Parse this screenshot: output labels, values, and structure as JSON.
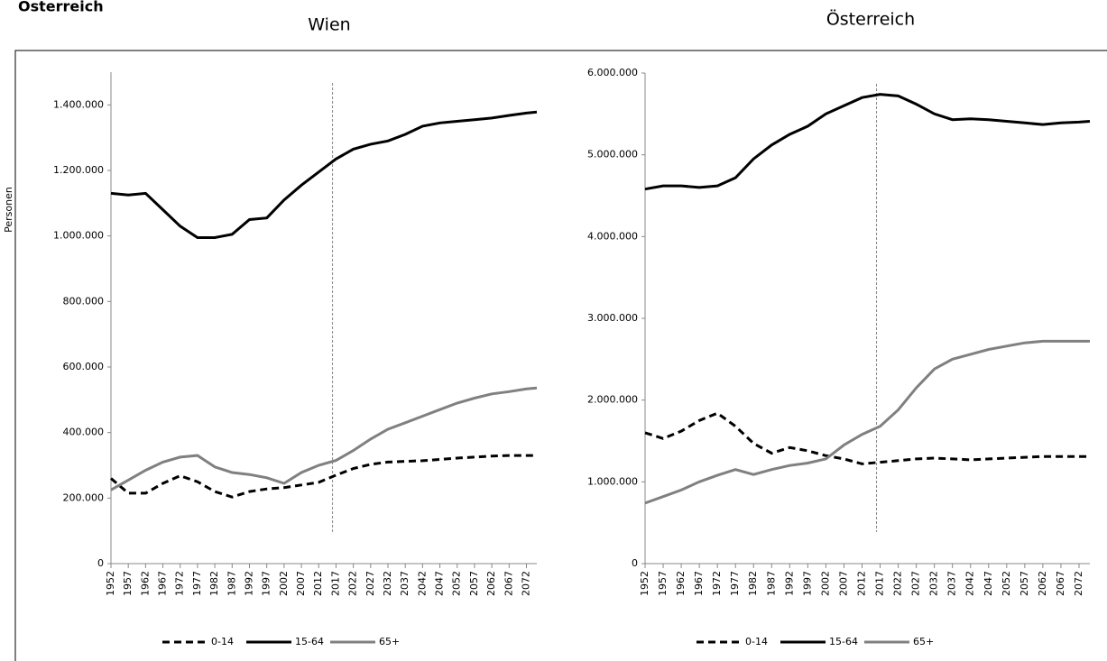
{
  "header": {
    "title": "Österreich"
  },
  "chart_data": [
    {
      "type": "line",
      "title": "Wien",
      "ylabel": "Personen",
      "x": [
        1952,
        1957,
        1962,
        1967,
        1972,
        1977,
        1982,
        1987,
        1992,
        1997,
        2002,
        2007,
        2012,
        2017,
        2022,
        2027,
        2032,
        2037,
        2042,
        2047,
        2052,
        2057,
        2062,
        2067,
        2072,
        2075
      ],
      "xlim": [
        1952,
        2075
      ],
      "xticks": [
        1952,
        1957,
        1962,
        1967,
        1972,
        1977,
        1982,
        1987,
        1992,
        1997,
        2002,
        2007,
        2012,
        2017,
        2022,
        2027,
        2032,
        2037,
        2042,
        2047,
        2052,
        2057,
        2062,
        2067,
        2072
      ],
      "ylim": [
        0,
        1500000
      ],
      "yticks": [
        0,
        {
          "value": 200000,
          "label": "200.000"
        },
        {
          "value": 400000,
          "label": "400.000"
        },
        {
          "value": 600000,
          "label": "600.000"
        },
        {
          "value": 800000,
          "label": "800.000"
        },
        {
          "value": 1000000,
          "label": "1.000.000"
        },
        {
          "value": 1200000,
          "label": "1.200.000"
        },
        {
          "value": 1400000,
          "label": "1.400.000"
        }
      ],
      "vline": 2016,
      "series": [
        {
          "name": "0-14",
          "color": "#000000",
          "line_style": "dashed",
          "values": [
            260000,
            215000,
            215000,
            245000,
            268000,
            250000,
            220000,
            203000,
            220000,
            228000,
            232000,
            240000,
            248000,
            270000,
            290000,
            303000,
            310000,
            312000,
            314000,
            318000,
            322000,
            325000,
            328000,
            330000,
            330000,
            330000
          ]
        },
        {
          "name": "15-64",
          "color": "#000000",
          "line_style": "solid",
          "values": [
            1130000,
            1125000,
            1130000,
            1080000,
            1030000,
            995000,
            995000,
            1005000,
            1050000,
            1055000,
            1110000,
            1155000,
            1195000,
            1235000,
            1265000,
            1280000,
            1290000,
            1310000,
            1335000,
            1345000,
            1350000,
            1355000,
            1360000,
            1368000,
            1375000,
            1378000
          ]
        },
        {
          "name": "65+",
          "color": "#808080",
          "line_style": "solid",
          "values": [
            225000,
            255000,
            285000,
            310000,
            325000,
            330000,
            295000,
            278000,
            272000,
            262000,
            245000,
            278000,
            300000,
            315000,
            345000,
            380000,
            410000,
            430000,
            450000,
            470000,
            490000,
            505000,
            518000,
            525000,
            533000,
            536000
          ]
        }
      ]
    },
    {
      "type": "line",
      "title": "Österreich",
      "x": [
        1952,
        1957,
        1962,
        1967,
        1972,
        1977,
        1982,
        1987,
        1992,
        1997,
        2002,
        2007,
        2012,
        2017,
        2022,
        2027,
        2032,
        2037,
        2042,
        2047,
        2052,
        2057,
        2062,
        2067,
        2072,
        2075
      ],
      "xlim": [
        1952,
        2075
      ],
      "xticks": [
        1952,
        1957,
        1962,
        1967,
        1972,
        1977,
        1982,
        1987,
        1992,
        1997,
        2002,
        2007,
        2012,
        2017,
        2022,
        2027,
        2032,
        2037,
        2042,
        2047,
        2052,
        2057,
        2062,
        2067,
        2072
      ],
      "ylim": [
        0,
        6000000
      ],
      "yticks": [
        0,
        {
          "value": 1000000,
          "label": "1.000.000"
        },
        {
          "value": 2000000,
          "label": "2.000.000"
        },
        {
          "value": 3000000,
          "label": "3.000.000"
        },
        {
          "value": 4000000,
          "label": "4.000.000"
        },
        {
          "value": 5000000,
          "label": "5.000.000"
        },
        {
          "value": 6000000,
          "label": "6.000.000"
        }
      ],
      "vline": 2016,
      "series": [
        {
          "name": "0-14",
          "color": "#000000",
          "line_style": "dashed",
          "values": [
            1600000,
            1530000,
            1620000,
            1750000,
            1840000,
            1680000,
            1470000,
            1350000,
            1420000,
            1380000,
            1320000,
            1280000,
            1220000,
            1240000,
            1260000,
            1280000,
            1290000,
            1280000,
            1270000,
            1280000,
            1290000,
            1300000,
            1310000,
            1310000,
            1310000,
            1310000
          ]
        },
        {
          "name": "15-64",
          "color": "#000000",
          "line_style": "solid",
          "values": [
            4580000,
            4620000,
            4620000,
            4600000,
            4620000,
            4720000,
            4950000,
            5120000,
            5250000,
            5350000,
            5500000,
            5600000,
            5700000,
            5740000,
            5720000,
            5620000,
            5500000,
            5430000,
            5440000,
            5430000,
            5410000,
            5390000,
            5370000,
            5390000,
            5400000,
            5410000
          ]
        },
        {
          "name": "65+",
          "color": "#808080",
          "line_style": "solid",
          "values": [
            740000,
            820000,
            900000,
            1000000,
            1080000,
            1150000,
            1090000,
            1150000,
            1200000,
            1230000,
            1280000,
            1450000,
            1580000,
            1680000,
            1880000,
            2150000,
            2380000,
            2500000,
            2560000,
            2620000,
            2660000,
            2700000,
            2720000,
            2720000,
            2720000,
            2720000
          ]
        }
      ]
    }
  ]
}
